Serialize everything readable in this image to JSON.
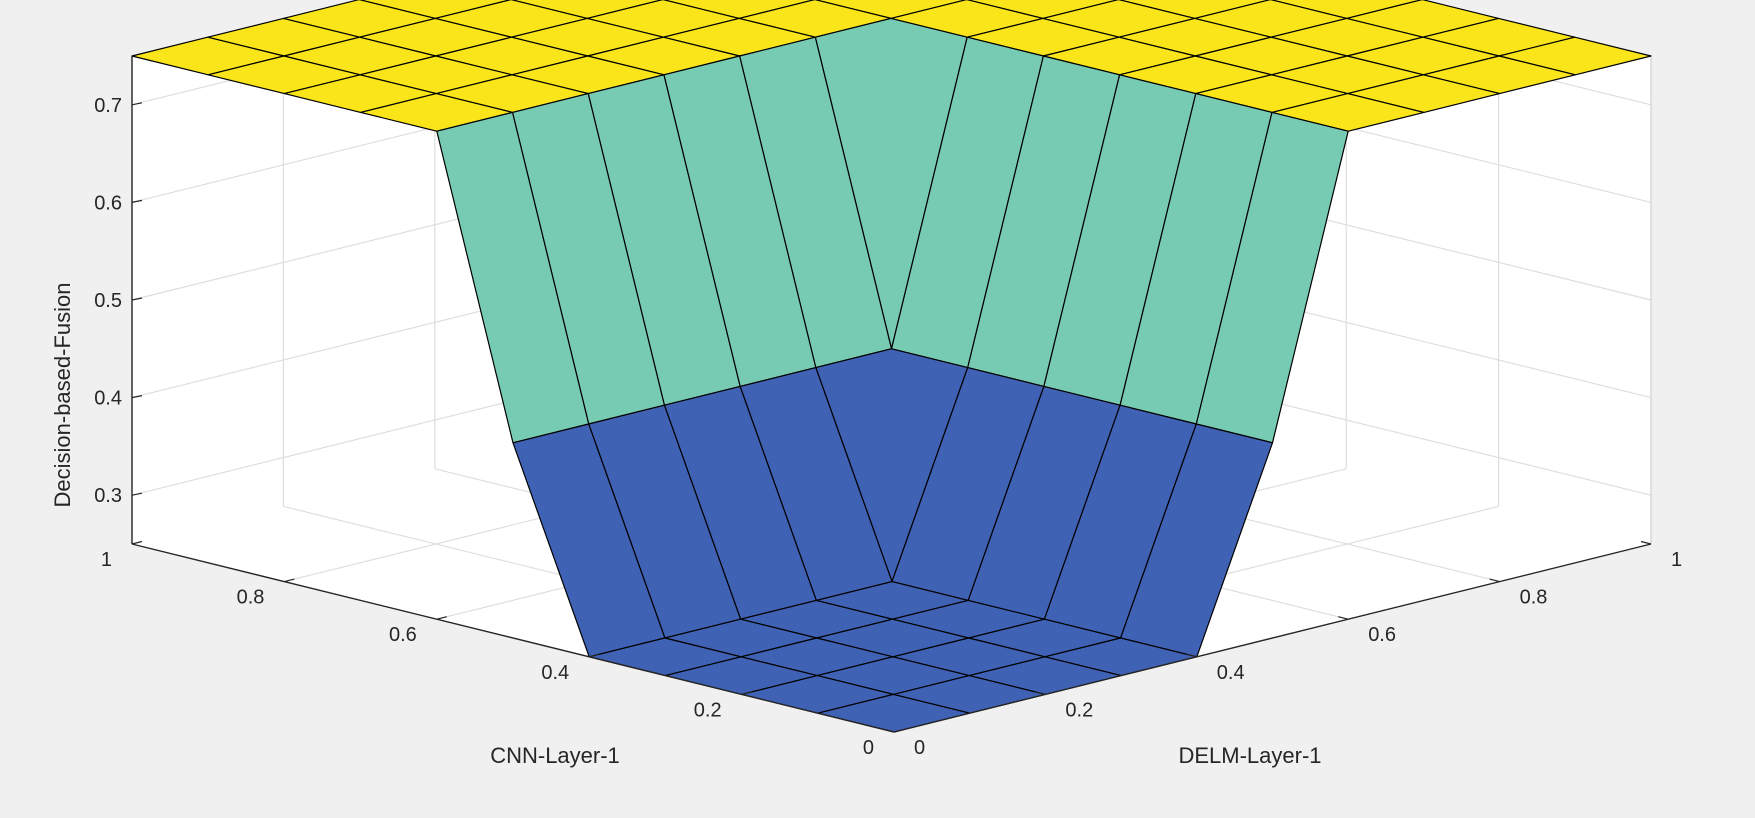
{
  "figure": {
    "background": "#f0f0f0"
  },
  "chart_data": {
    "type": "surface",
    "title": "",
    "xlabel": "CNN-Layer-1",
    "ylabel": "DELM-Layer-1",
    "zlabel": "Decision-based-Fusion",
    "xlim": [
      0,
      1
    ],
    "ylim": [
      0,
      1
    ],
    "zlim": [
      0.25,
      0.75
    ],
    "x_ticks": [
      0,
      0.2,
      0.4,
      0.6,
      0.8,
      1
    ],
    "x_tick_labels": [
      "0",
      "0.2",
      "0.4",
      "0.6",
      "0.8",
      "1"
    ],
    "y_ticks": [
      0,
      0.2,
      0.4,
      0.6,
      0.8,
      1
    ],
    "y_tick_labels": [
      "0",
      "0.2",
      "0.4",
      "0.6",
      "0.8",
      "1"
    ],
    "z_ticks": [
      0.3,
      0.4,
      0.5,
      0.6,
      0.7
    ],
    "z_tick_labels": [
      "0.3",
      "0.4",
      "0.5",
      "0.6",
      "0.7"
    ],
    "grid": true,
    "grid_points": [
      0,
      0.1,
      0.2,
      0.3,
      0.4,
      0.5,
      0.6,
      0.7,
      0.8,
      0.9,
      1.0
    ],
    "surface_levels": {
      "low": 0.25,
      "mid": 0.45,
      "high": 0.75
    },
    "x_transition": [
      0.4,
      0.5
    ],
    "y_transition": [
      0.4,
      0.5
    ],
    "colors": {
      "low": "#3f62b5",
      "mid": "#78cbb3",
      "high": "#f9e51a",
      "edge": "#000000",
      "grid": "#dedede",
      "axes": "#262626"
    }
  }
}
